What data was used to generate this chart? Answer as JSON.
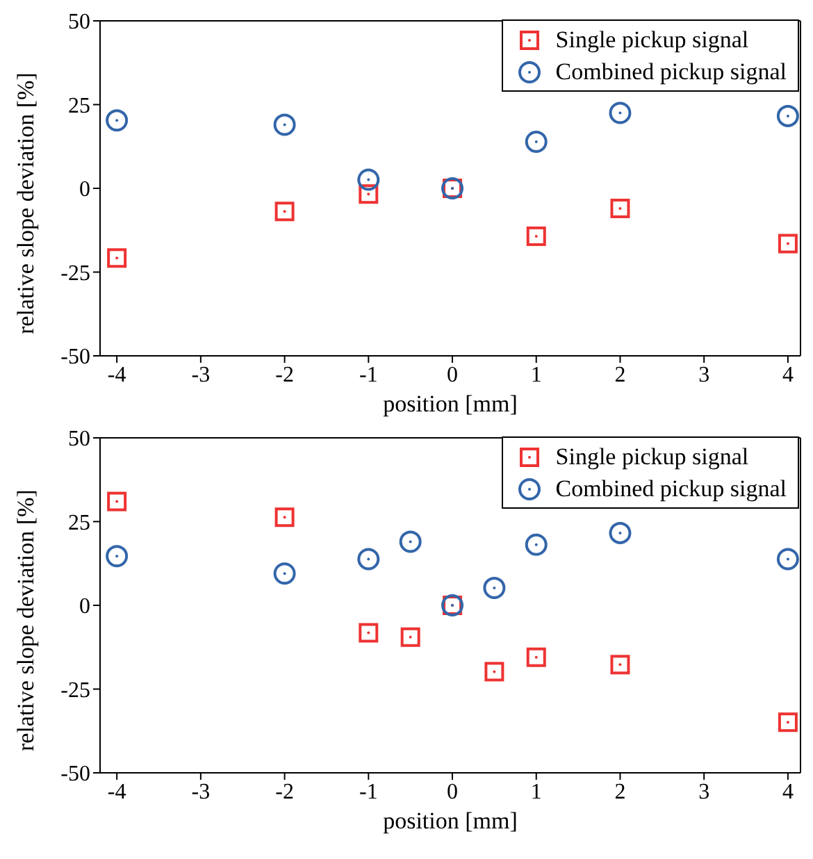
{
  "chart_data": [
    {
      "type": "scatter",
      "xlabel": "position [mm]",
      "ylabel": "relative slope deviation [%]",
      "xlim": [
        -4.2,
        4.15
      ],
      "xticks": [
        -4,
        -3,
        -2,
        -1,
        0,
        1,
        2,
        3,
        4
      ],
      "ylim": [
        -50,
        50
      ],
      "yticks": [
        -50,
        -25,
        0,
        25,
        50
      ],
      "legend": "top right",
      "series": [
        {
          "name": "Single pickup signal",
          "color": "#ee3333",
          "marker": "square",
          "x": [
            -4,
            -2,
            -1,
            0,
            1,
            2,
            4
          ],
          "values": [
            -20.8,
            -6.9,
            -1.7,
            0,
            -14.3,
            -6,
            -16.5
          ]
        },
        {
          "name": "Combined pickup signal",
          "color": "#3366aa",
          "marker": "circle",
          "x": [
            -4,
            -2,
            -1,
            0,
            1,
            2,
            4
          ],
          "values": [
            20.3,
            19,
            2.6,
            0,
            13.9,
            22.5,
            21.6
          ]
        }
      ]
    },
    {
      "type": "scatter",
      "xlabel": "position [mm]",
      "ylabel": "relative slope deviation [%]",
      "xlim": [
        -4.2,
        4.15
      ],
      "xticks": [
        -4,
        -3,
        -2,
        -1,
        0,
        1,
        2,
        3,
        4
      ],
      "ylim": [
        -50,
        50
      ],
      "yticks": [
        -50,
        -25,
        0,
        25,
        50
      ],
      "legend": "top right",
      "series": [
        {
          "name": "Single pickup signal",
          "color": "#ee3333",
          "marker": "square",
          "x": [
            -4,
            -2,
            -1,
            -0.5,
            0,
            0.5,
            1,
            2,
            4
          ],
          "values": [
            31,
            26.3,
            -8.2,
            -9.5,
            0,
            -19.8,
            -15.5,
            -17.7,
            -34.9
          ]
        },
        {
          "name": "Combined pickup signal",
          "color": "#3366aa",
          "marker": "circle",
          "x": [
            -4,
            -2,
            -1,
            -0.5,
            0,
            0.5,
            1,
            2,
            4
          ],
          "values": [
            14.7,
            9.5,
            13.8,
            19,
            0,
            5.2,
            18.1,
            21.6,
            13.8
          ]
        }
      ]
    }
  ]
}
